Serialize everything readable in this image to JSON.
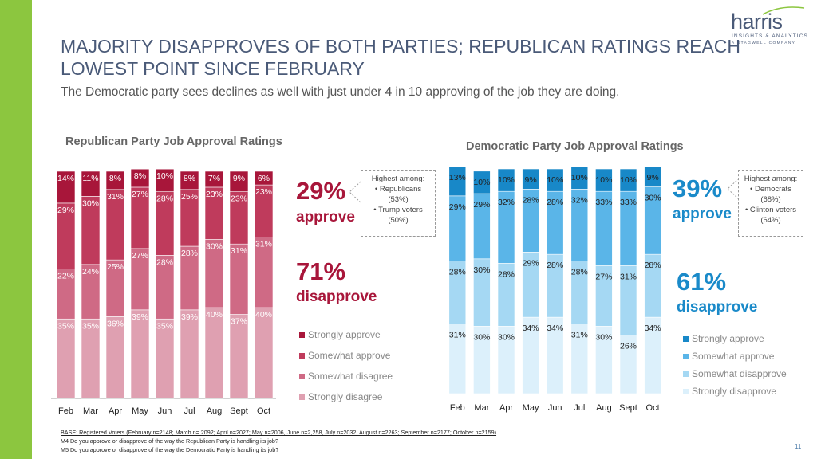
{
  "colors": {
    "accent_green": "#8cc63f",
    "rep": [
      "#a8163a",
      "#bf3b5c",
      "#cf6a85",
      "#dfa0b1"
    ],
    "dem": [
      "#1888c8",
      "#5ab5e8",
      "#a5d8f3",
      "#dcf0fb"
    ],
    "rep_text": "#a8163a",
    "dem_text": "#1a8ac9"
  },
  "header": {
    "title": "MAJORITY DISAPPROVES OF BOTH PARTIES; REPUBLICAN RATINGS REACH LOWEST POINT SINCE FEBRUARY",
    "subtitle": "The Democratic party sees declines as well with just under 4 in 10 approving of the job they are doing."
  },
  "logo": {
    "name": "harris",
    "tagline": "INSIGHTS & ANALYTICS",
    "subline": "A STAGWELL COMPANY"
  },
  "rep_summary": {
    "approve_pct": "29%",
    "approve_label": "approve",
    "disapprove_pct": "71%",
    "disapprove_label": "disapprove",
    "callout_head": "Highest among:",
    "callout_items": [
      "• Republicans (53%)",
      "• Trump voters (50%)"
    ]
  },
  "dem_summary": {
    "approve_pct": "39%",
    "approve_label": "approve",
    "disapprove_pct": "61%",
    "disapprove_label": "disapprove",
    "callout_head": "Highest among:",
    "callout_items": [
      "• Democrats (68%)",
      "• Clinton voters (64%)"
    ]
  },
  "chart_data": [
    {
      "type": "bar",
      "stacked": true,
      "title": "Republican Party Job Approval Ratings",
      "categories": [
        "Feb",
        "Mar",
        "Apr",
        "May",
        "Jun",
        "Jul",
        "Aug",
        "Sept",
        "Oct"
      ],
      "series": [
        {
          "name": "Strongly approve",
          "values": [
            14,
            11,
            8,
            8,
            10,
            8,
            7,
            9,
            6
          ],
          "labels": [
            "14%",
            "11%",
            "8%",
            "8%",
            "10%",
            "8%",
            "7%",
            "9%",
            "6%"
          ]
        },
        {
          "name": "Somewhat approve",
          "values": [
            29,
            30,
            31,
            27,
            28,
            25,
            23,
            23,
            23
          ],
          "labels": [
            "29%",
            "30%",
            "31%",
            "27%",
            "28%",
            "25%",
            "23%",
            "23%",
            "23%"
          ]
        },
        {
          "name": "Somewhat disagree",
          "values": [
            22,
            24,
            25,
            27,
            28,
            28,
            30,
            31,
            31
          ],
          "labels": [
            "22%",
            "24%",
            "25%",
            "27%",
            "28%",
            "28%",
            "30%",
            "31%",
            "31%"
          ]
        },
        {
          "name": "Strongly disagree",
          "values": [
            35,
            35,
            36,
            39,
            35,
            39,
            40,
            37,
            40
          ],
          "labels": [
            "35%",
            "35%",
            "36%",
            "39%",
            "35%",
            "39%",
            "40%",
            "37%",
            "40%"
          ]
        }
      ],
      "legend": [
        "Strongly approve",
        "Somewhat approve",
        "Somewhat disagree",
        "Strongly disagree"
      ],
      "ylim": [
        0,
        100
      ]
    },
    {
      "type": "bar",
      "stacked": true,
      "title": "Democratic Party Job Approval Ratings",
      "categories": [
        "Feb",
        "Mar",
        "Apr",
        "May",
        "Jun",
        "Jul",
        "Aug",
        "Sept",
        "Oct"
      ],
      "series": [
        {
          "name": "Strongly approve",
          "values": [
            13,
            10,
            10,
            9,
            10,
            10,
            10,
            10,
            9
          ],
          "labels": [
            "13%",
            "10%",
            "10%",
            "9%",
            "10%",
            "10%",
            "10%",
            "10%",
            "9%"
          ]
        },
        {
          "name": "Somewhat approve",
          "values": [
            29,
            29,
            32,
            28,
            28,
            32,
            33,
            33,
            30
          ],
          "labels": [
            "29%",
            "29%",
            "32%",
            "28%",
            "28%",
            "32%",
            "33%",
            "33%",
            "30%"
          ]
        },
        {
          "name": "Somewhat disapprove",
          "values": [
            28,
            30,
            28,
            29,
            28,
            28,
            27,
            31,
            28
          ],
          "labels": [
            "28%",
            "30%",
            "28%",
            "29%",
            "28%",
            "28%",
            "27%",
            "31%",
            "28%"
          ]
        },
        {
          "name": "Strongly disapprove",
          "values": [
            31,
            30,
            30,
            34,
            34,
            31,
            30,
            26,
            34
          ],
          "labels": [
            "31%",
            "30%",
            "30%",
            "34%",
            "34%",
            "31%",
            "30%",
            "26%",
            "34%"
          ]
        }
      ],
      "legend": [
        "Strongly approve",
        "Somewhat approve",
        "Somewhat disapprove",
        "Strongly disapprove"
      ],
      "ylim": [
        0,
        100
      ]
    }
  ],
  "footnote": {
    "base": "BASE: Registered Voters (February n=2148; March n= 2092; April n=2027; May n=2006, June n=2,258, July n=2032, August n=2263; September n=2177; October n=2159)",
    "q1": "M4 Do you approve or disapprove of the way the Republican Party is handling its job?",
    "q2": "M5 Do you approve or disapprove of the way the Democratic Party is handling its job?"
  },
  "page_number": "11"
}
